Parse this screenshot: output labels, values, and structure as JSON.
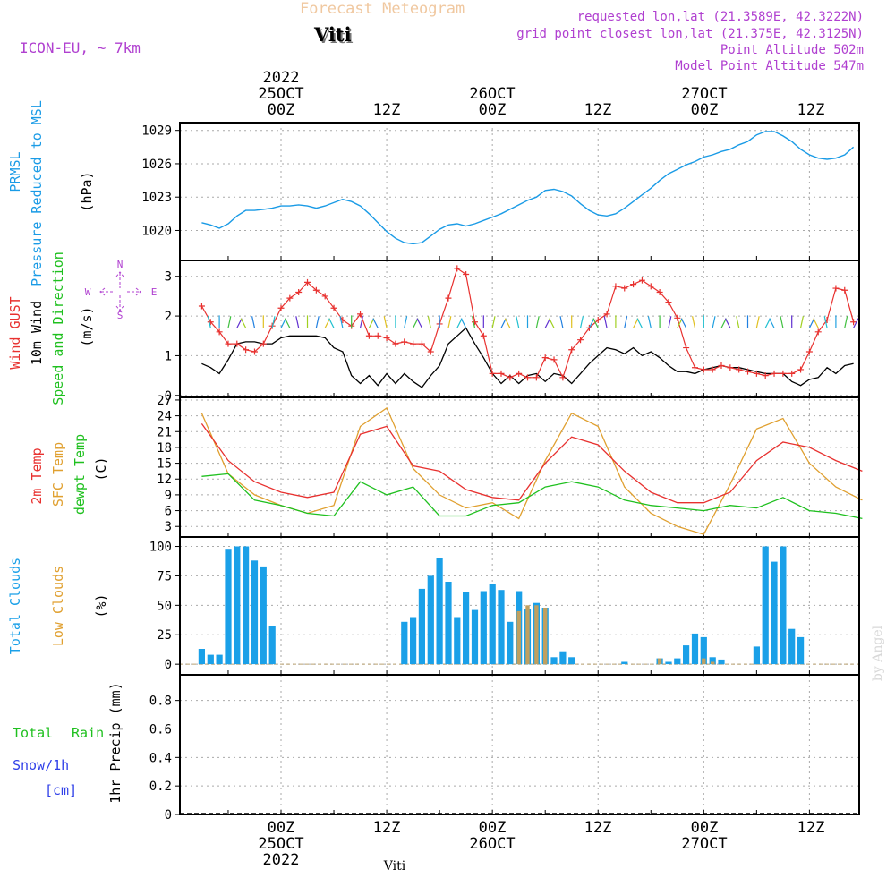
{
  "header": {
    "title": "Forecast Meteogram",
    "location": "Viti",
    "model": "ICON-EU, ~ 7km",
    "requested": "requested lon,lat (21.3589E, 42.3222N)",
    "gridpoint": "grid point closest lon,lat (21.375E, 42.3125N)",
    "point_alt": "Point Altitude 502m",
    "model_alt": "Model Point Altitude 547m",
    "footer_location": "Viti",
    "watermark": "by Angel"
  },
  "time_axis": {
    "top_labels": [
      {
        "time": "00Z",
        "date": "25OCT",
        "year": "2022"
      },
      {
        "time": "12Z",
        "date": "",
        "year": ""
      },
      {
        "time": "00Z",
        "date": "26OCT",
        "year": ""
      },
      {
        "time": "12Z",
        "date": "",
        "year": ""
      },
      {
        "time": "00Z",
        "date": "27OCT",
        "year": ""
      },
      {
        "time": "12Z",
        "date": "",
        "year": ""
      }
    ],
    "bottom_labels": [
      {
        "time": "00Z",
        "date": "25OCT",
        "year": "2022"
      },
      {
        "time": "12Z",
        "date": "",
        "year": ""
      },
      {
        "time": "00Z",
        "date": "26OCT",
        "year": ""
      },
      {
        "time": "12Z",
        "date": "",
        "year": ""
      },
      {
        "time": "00Z",
        "date": "27OCT",
        "year": ""
      },
      {
        "time": "12Z",
        "date": "",
        "year": ""
      }
    ]
  },
  "panel_labels": {
    "pressure": {
      "l1": "PRMSL",
      "l2": "Pressure Reduced to MSL",
      "unit": "(hPa)"
    },
    "wind": {
      "l1": "Wind GUST",
      "l2": "10m Wind",
      "l3": "Speed and Direction",
      "unit": "(m/s)",
      "compass_n": "N",
      "compass_s": "S",
      "compass_w": "W",
      "compass_e": "E"
    },
    "temp": {
      "l1": "2m Temp",
      "l2": "SFC Temp",
      "l3": "dewpt Temp",
      "unit": "(C)"
    },
    "clouds": {
      "l1": "Total Clouds",
      "l2": "Low Clouds",
      "unit": "(%)"
    },
    "precip": {
      "l1": "Total",
      "l1b": "Rain",
      "l2": "Snow/1h",
      "l3": "[cm]",
      "unit": "1hr Precip (mm)"
    }
  },
  "colors": {
    "pressure": "#1a9be6",
    "gust": "#e8312f",
    "wind": "#000000",
    "temp2m": "#e8312f",
    "sfc": "#e0a030",
    "dew": "#1fc01f",
    "cloud_total": "#1aa0e8",
    "cloud_low": "#c0a060",
    "title": "#f0c8a0",
    "meta": "#b040d0"
  },
  "chart_data": [
    {
      "type": "line",
      "title": "PRMSL Pressure Reduced to MSL",
      "ylabel": "(hPa)",
      "x_unit": "hours from 25OCT 00Z",
      "x": [
        -9,
        -8,
        -7,
        -6,
        -5,
        -4,
        -3,
        -2,
        -1,
        0,
        1,
        2,
        3,
        4,
        5,
        6,
        7,
        8,
        9,
        10,
        11,
        12,
        13,
        14,
        15,
        16,
        17,
        18,
        19,
        20,
        21,
        22,
        23,
        24,
        25,
        26,
        27,
        28,
        29,
        30,
        31,
        32,
        33,
        34,
        35,
        36,
        37,
        38,
        39,
        40,
        41,
        42,
        43,
        44,
        45,
        46,
        47,
        48,
        49,
        50,
        51,
        52,
        53,
        54,
        55,
        56,
        57,
        58,
        59,
        60,
        61,
        62,
        63,
        64,
        65
      ],
      "series": [
        {
          "name": "PRMSL",
          "values": [
            1020.7,
            1020.5,
            1020.2,
            1020.6,
            1021.3,
            1021.8,
            1021.8,
            1021.9,
            1022.0,
            1022.2,
            1022.2,
            1022.3,
            1022.2,
            1022.0,
            1022.2,
            1022.5,
            1022.8,
            1022.6,
            1022.2,
            1021.5,
            1020.7,
            1019.9,
            1019.3,
            1018.9,
            1018.8,
            1018.9,
            1019.5,
            1020.1,
            1020.5,
            1020.6,
            1020.4,
            1020.6,
            1020.9,
            1021.2,
            1021.5,
            1021.9,
            1022.3,
            1022.7,
            1023.0,
            1023.6,
            1023.7,
            1023.5,
            1023.1,
            1022.4,
            1021.8,
            1021.4,
            1021.3,
            1021.5,
            1022.0,
            1022.6,
            1023.2,
            1023.8,
            1024.5,
            1025.1,
            1025.5,
            1025.9,
            1026.2,
            1026.6,
            1026.8,
            1027.1,
            1027.3,
            1027.7,
            1028.0,
            1028.6,
            1028.9,
            1028.9,
            1028.5,
            1028.0,
            1027.3,
            1026.8,
            1026.5,
            1026.4,
            1026.5,
            1026.8,
            1027.5
          ]
        }
      ],
      "ylim": [
        1017.3,
        1029.7
      ],
      "yticks": [
        1020,
        1023,
        1026,
        1029
      ]
    },
    {
      "type": "line",
      "title": "Wind GUST / 10m Wind Speed and Direction",
      "ylabel": "(m/s)",
      "x_unit": "hours from 25OCT 00Z",
      "x": [
        -9,
        -8,
        -7,
        -6,
        -5,
        -4,
        -3,
        -2,
        -1,
        0,
        1,
        2,
        3,
        4,
        5,
        6,
        7,
        8,
        9,
        10,
        11,
        12,
        13,
        14,
        15,
        16,
        17,
        18,
        19,
        20,
        21,
        22,
        23,
        24,
        25,
        26,
        27,
        28,
        29,
        30,
        31,
        32,
        33,
        34,
        35,
        36,
        37,
        38,
        39,
        40,
        41,
        42,
        43,
        44,
        45,
        46,
        47,
        48,
        49,
        50,
        51,
        52,
        53,
        54,
        55,
        56,
        57,
        58,
        59,
        60,
        61,
        62,
        63,
        64,
        65
      ],
      "series": [
        {
          "name": "Wind GUST",
          "values": [
            2.25,
            1.85,
            1.6,
            1.3,
            1.3,
            1.15,
            1.1,
            1.3,
            1.75,
            2.2,
            2.45,
            2.6,
            2.85,
            2.65,
            2.5,
            2.2,
            1.9,
            1.75,
            2.05,
            1.5,
            1.5,
            1.45,
            1.3,
            1.35,
            1.3,
            1.3,
            1.1,
            1.8,
            2.45,
            3.2,
            3.05,
            1.85,
            1.5,
            0.55,
            0.55,
            0.45,
            0.55,
            0.45,
            0.45,
            0.95,
            0.9,
            0.45,
            1.15,
            1.4,
            1.7,
            1.9,
            2.05,
            2.75,
            2.7,
            2.8,
            2.9,
            2.75,
            2.6,
            2.35,
            1.95,
            1.2,
            0.7,
            0.65,
            0.65,
            0.75,
            0.7,
            0.65,
            0.6,
            0.55,
            0.5,
            0.55,
            0.55,
            0.55,
            0.65,
            1.1,
            1.6,
            1.9,
            2.7,
            2.65,
            1.85
          ]
        },
        {
          "name": "10m Wind",
          "values": [
            0.8,
            0.7,
            0.55,
            0.9,
            1.3,
            1.35,
            1.35,
            1.3,
            1.3,
            1.45,
            1.5,
            1.5,
            1.5,
            1.5,
            1.45,
            1.2,
            1.1,
            0.5,
            0.3,
            0.5,
            0.25,
            0.55,
            0.3,
            0.55,
            0.35,
            0.2,
            0.5,
            0.75,
            1.3,
            1.5,
            1.7,
            1.3,
            0.95,
            0.55,
            0.3,
            0.5,
            0.3,
            0.5,
            0.55,
            0.35,
            0.55,
            0.5,
            0.3,
            0.55,
            0.8,
            1.0,
            1.2,
            1.15,
            1.05,
            1.2,
            1.0,
            1.1,
            0.95,
            0.75,
            0.6,
            0.6,
            0.55,
            0.65,
            0.7,
            0.75,
            0.7,
            0.7,
            0.65,
            0.6,
            0.55,
            0.55,
            0.55,
            0.35,
            0.25,
            0.4,
            0.45,
            0.7,
            0.55,
            0.75,
            0.8
          ]
        }
      ],
      "ylim": [
        -0.05,
        3.4
      ],
      "yticks": [
        0,
        1,
        2,
        3
      ]
    },
    {
      "type": "line",
      "title": "2m Temp / SFC Temp / dewpt Temp",
      "ylabel": "(C)",
      "x_unit": "hours from 25OCT 00Z",
      "x": [
        -9,
        -6,
        -3,
        0,
        3,
        6,
        9,
        12,
        15,
        18,
        21,
        24,
        27,
        30,
        33,
        36,
        39,
        42,
        45,
        48,
        51,
        54,
        57,
        60,
        63,
        66
      ],
      "series": [
        {
          "name": "2m Temp",
          "values": [
            22.5,
            15.5,
            11.5,
            9.5,
            8.5,
            9.5,
            20.5,
            22.0,
            14.5,
            13.5,
            10.0,
            8.5,
            8.0,
            15.0,
            20.0,
            18.5,
            13.5,
            9.5,
            7.5,
            7.5,
            9.5,
            15.5,
            19.0,
            18.0,
            15.5,
            13.5
          ]
        },
        {
          "name": "SFC Temp",
          "values": [
            24.5,
            13.0,
            9.0,
            7.0,
            5.5,
            7.0,
            22.0,
            25.5,
            14.0,
            9.0,
            6.5,
            7.5,
            4.5,
            15.5,
            24.5,
            22.0,
            10.5,
            5.5,
            3.0,
            1.5,
            11.0,
            21.5,
            23.5,
            15.0,
            10.5,
            8.0
          ]
        },
        {
          "name": "dewpt Temp",
          "values": [
            12.5,
            13.0,
            8.0,
            7.0,
            5.5,
            5.0,
            11.5,
            9.0,
            10.5,
            5.0,
            5.0,
            7.0,
            7.5,
            10.5,
            11.5,
            10.5,
            8.0,
            7.0,
            6.5,
            6.0,
            7.0,
            6.5,
            8.5,
            6.0,
            5.5,
            4.5
          ]
        }
      ],
      "ylim": [
        1.0,
        27.5
      ],
      "yticks": [
        3,
        6,
        9,
        12,
        15,
        18,
        21,
        24,
        27
      ]
    },
    {
      "type": "bar",
      "title": "Total Clouds / Low Clouds",
      "ylabel": "(%)",
      "x_unit": "hours from 25OCT 00Z",
      "x": [
        -9,
        -8,
        -7,
        -6,
        -5,
        -4,
        -3,
        -2,
        -1,
        0,
        1,
        2,
        3,
        4,
        5,
        6,
        7,
        8,
        9,
        10,
        11,
        12,
        13,
        14,
        15,
        16,
        17,
        18,
        19,
        20,
        21,
        22,
        23,
        24,
        25,
        26,
        27,
        28,
        29,
        30,
        31,
        32,
        33,
        34,
        35,
        36,
        37,
        38,
        39,
        40,
        41,
        42,
        43,
        44,
        45,
        46,
        47,
        48,
        49,
        50,
        51,
        52,
        53,
        54,
        55,
        56,
        57,
        58,
        59,
        60,
        61,
        62,
        63,
        64,
        65
      ],
      "series": [
        {
          "name": "Total Clouds",
          "values": [
            13,
            8,
            8,
            98,
            100,
            100,
            88,
            83,
            32,
            0,
            0,
            0,
            0,
            0,
            0,
            0,
            0,
            0,
            0,
            0,
            0,
            0,
            0,
            36,
            40,
            64,
            75,
            90,
            70,
            40,
            61,
            46,
            62,
            68,
            63,
            36,
            62,
            47,
            52,
            48,
            6,
            11,
            6,
            0,
            0,
            0,
            0,
            0,
            2,
            0,
            0,
            0,
            5,
            2,
            5,
            16,
            26,
            23,
            6,
            4,
            0,
            0,
            0,
            15,
            100,
            87,
            100,
            30,
            23,
            0,
            0,
            0,
            0,
            0,
            0
          ]
        },
        {
          "name": "Low Clouds",
          "values": [
            0,
            0,
            0,
            0,
            0,
            0,
            0,
            0,
            0,
            0,
            0,
            0,
            0,
            0,
            0,
            0,
            0,
            0,
            0,
            0,
            0,
            0,
            0,
            0,
            0,
            0,
            0,
            0,
            0,
            0,
            0,
            0,
            0,
            0,
            0,
            0,
            45,
            50,
            50,
            48,
            0,
            0,
            0,
            0,
            0,
            0,
            0,
            0,
            0,
            0,
            0,
            0,
            5,
            0,
            0,
            0,
            0,
            5,
            2,
            0,
            0,
            0,
            0,
            0,
            0,
            0,
            0,
            0,
            0,
            0,
            0,
            0,
            0,
            0,
            0
          ]
        }
      ],
      "ylim": [
        -9,
        108
      ],
      "yticks": [
        0,
        25,
        50,
        75,
        100
      ]
    },
    {
      "type": "bar",
      "title": "1hr Precip (mm)",
      "ylabel": "1hr Precip (mm)",
      "x_unit": "hours from 25OCT 00Z",
      "series": [
        {
          "name": "Total Rain",
          "values": []
        },
        {
          "name": "Snow/1h",
          "values": []
        }
      ],
      "ylim": [
        0,
        0.98
      ],
      "yticks": [
        0,
        0.2,
        0.4,
        0.6,
        0.8
      ]
    }
  ]
}
